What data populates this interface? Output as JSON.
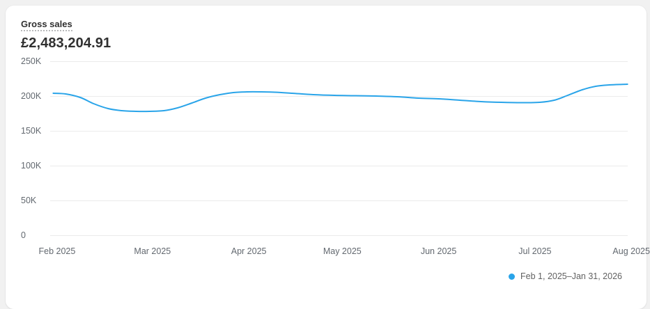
{
  "header": {
    "title": "Gross sales",
    "value": "£2,483,204.91"
  },
  "legend": {
    "items": [
      {
        "label": "Feb 1, 2025–Jan 31, 2026",
        "color": "#29a4e9"
      }
    ]
  },
  "colors": {
    "line": "#29a4e9",
    "grid": "#ebebeb",
    "axis_text": "#62686f",
    "title_text": "#303030",
    "card_bg": "#ffffff",
    "page_bg": "#f1f1f1"
  },
  "chart_data": {
    "type": "line",
    "title": "Gross sales",
    "y_unit": "GBP (thousands)",
    "x_unit": "months since Feb 1, 2025 (axis continues past visible crop toward Jan 31, 2026)",
    "ylim": [
      0,
      258
    ],
    "grid": true,
    "legend_position": "bottom-right",
    "y_ticks": [
      {
        "label": "250K",
        "value": 250
      },
      {
        "label": "200K",
        "value": 200
      },
      {
        "label": "150K",
        "value": 150
      },
      {
        "label": "100K",
        "value": 100
      },
      {
        "label": "50K",
        "value": 50
      },
      {
        "label": "0",
        "value": 0
      }
    ],
    "x_ticks": [
      {
        "label": "Feb 2025",
        "t": 0.05
      },
      {
        "label": "Mar 2025",
        "t": 1.04
      },
      {
        "label": "Apr 2025",
        "t": 2.04
      },
      {
        "label": "May 2025",
        "t": 3.01
      },
      {
        "label": "Jun 2025",
        "t": 4.01
      },
      {
        "label": "Jul 2025",
        "t": 5.01
      },
      {
        "label": "Aug 2025",
        "t": 6.01
      }
    ],
    "series": [
      {
        "name": "Feb 1, 2025–Jan 31, 2026",
        "color": "#29a4e9",
        "points": [
          {
            "t": 0.01,
            "value": 204
          },
          {
            "t": 0.14,
            "value": 203
          },
          {
            "t": 0.29,
            "value": 198
          },
          {
            "t": 0.43,
            "value": 189
          },
          {
            "t": 0.58,
            "value": 182
          },
          {
            "t": 0.72,
            "value": 179
          },
          {
            "t": 0.87,
            "value": 178
          },
          {
            "t": 1.01,
            "value": 178
          },
          {
            "t": 1.16,
            "value": 179
          },
          {
            "t": 1.3,
            "value": 183
          },
          {
            "t": 1.45,
            "value": 190
          },
          {
            "t": 1.59,
            "value": 197
          },
          {
            "t": 1.74,
            "value": 202
          },
          {
            "t": 1.88,
            "value": 205
          },
          {
            "t": 2.02,
            "value": 206
          },
          {
            "t": 2.17,
            "value": 206
          },
          {
            "t": 2.31,
            "value": 205.5
          },
          {
            "t": 2.49,
            "value": 204
          },
          {
            "t": 2.71,
            "value": 202
          },
          {
            "t": 2.93,
            "value": 201
          },
          {
            "t": 3.15,
            "value": 200.5
          },
          {
            "t": 3.36,
            "value": 200
          },
          {
            "t": 3.58,
            "value": 199
          },
          {
            "t": 3.8,
            "value": 197
          },
          {
            "t": 4.01,
            "value": 196
          },
          {
            "t": 4.23,
            "value": 194
          },
          {
            "t": 4.45,
            "value": 192
          },
          {
            "t": 4.66,
            "value": 191
          },
          {
            "t": 4.88,
            "value": 190.5
          },
          {
            "t": 5.06,
            "value": 191
          },
          {
            "t": 5.21,
            "value": 194
          },
          {
            "t": 5.35,
            "value": 201
          },
          {
            "t": 5.5,
            "value": 209
          },
          {
            "t": 5.64,
            "value": 214
          },
          {
            "t": 5.78,
            "value": 216
          },
          {
            "t": 5.97,
            "value": 217
          }
        ]
      }
    ]
  }
}
